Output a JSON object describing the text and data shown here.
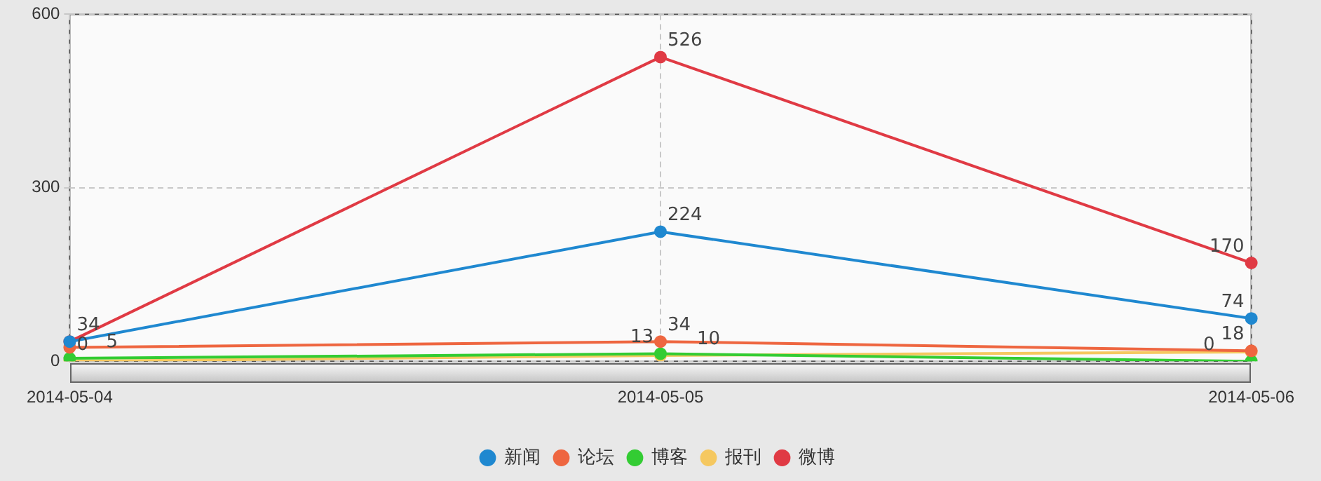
{
  "chart_data": {
    "type": "line",
    "categories": [
      "2014-05-04",
      "2014-05-05",
      "2014-05-06"
    ],
    "series": [
      {
        "name": "新闻",
        "color": "#1f88d0",
        "values": [
          34,
          224,
          74
        ],
        "value_labels": [
          null,
          "224",
          "74"
        ]
      },
      {
        "name": "论坛",
        "color": "#ee6640",
        "values": [
          24,
          34,
          18
        ],
        "value_labels": [
          null,
          "34",
          "18"
        ]
      },
      {
        "name": "博客",
        "color": "#33cc33",
        "values": [
          5,
          13,
          0
        ],
        "value_labels": [
          "5",
          "13",
          "0"
        ]
      },
      {
        "name": "报刊",
        "color": "#f5c860",
        "values": [
          0,
          10,
          16
        ],
        "value_labels": [
          "0",
          "10",
          null
        ]
      },
      {
        "name": "微博",
        "color": "#e03a44",
        "values": [
          34,
          526,
          170
        ],
        "value_labels": [
          "34",
          "526",
          "170"
        ]
      }
    ],
    "ylim": [
      0,
      600
    ],
    "yticks": [
      0,
      300,
      600
    ],
    "grid": true,
    "legend": "bottom",
    "marker": "circle",
    "line_style": "solid"
  }
}
